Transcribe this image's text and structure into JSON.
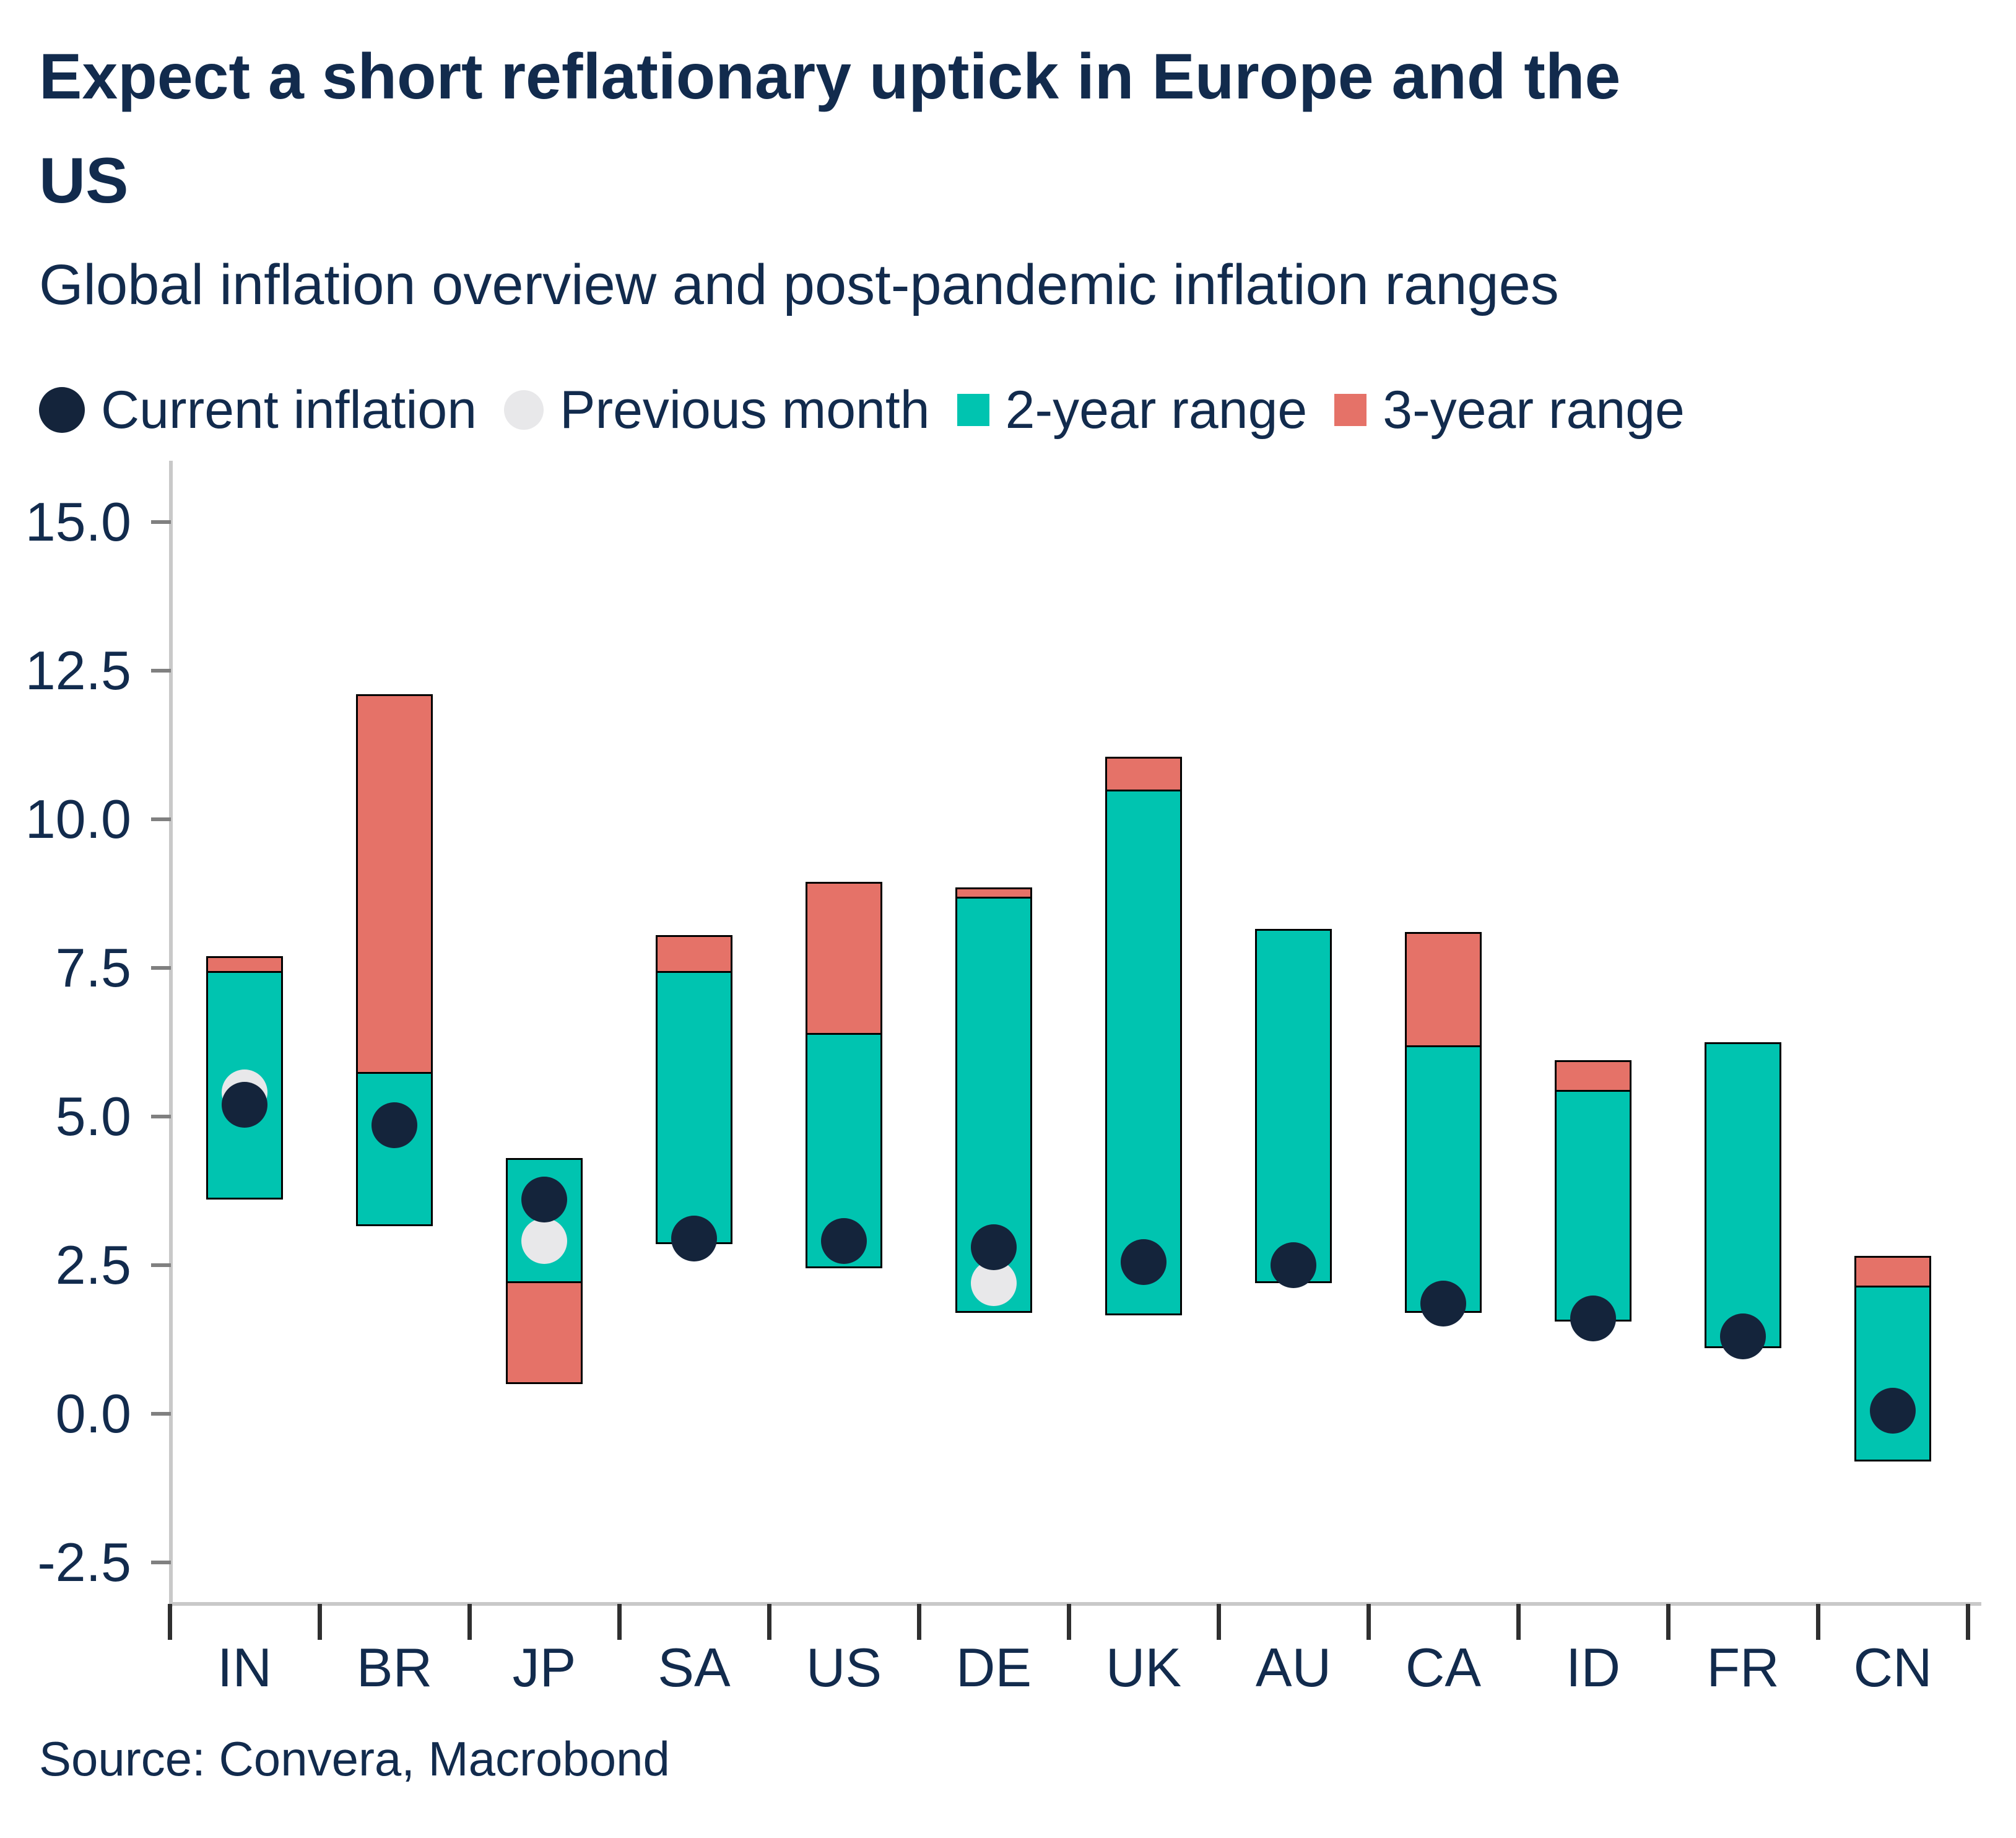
{
  "title": "Expect a short reflationary uptick in Europe and the\nUS",
  "subtitle": "Global inflation overview and post-pandemic inflation ranges",
  "source": "Source: Convera, Macrobond",
  "legend": [
    {
      "label": "Current inflation",
      "marker": "circle",
      "color": "#14243b"
    },
    {
      "label": "Previous month",
      "marker": "circle",
      "color": "#e8e8ea"
    },
    {
      "label": "2-year range",
      "marker": "square",
      "color": "#00c4b0"
    },
    {
      "label": "3-year range",
      "marker": "square",
      "color": "#e57268"
    }
  ],
  "colors": {
    "text_navy": "#122b4d",
    "current_dot": "#14243b",
    "previous_dot": "#e8e8ea",
    "two_year_range": "#00c4b0",
    "three_year_range": "#e57268",
    "bar_border": "#000000",
    "axis_line": "#c9c9c9",
    "y_tick": "#808080",
    "x_tick": "#2f2f2f"
  },
  "chart_data": {
    "type": "bar",
    "subtype": "floating-range-bars-with-points",
    "title": "Expect a short reflationary uptick in Europe and the US",
    "subtitle": "Global inflation overview and post-pandemic inflation ranges",
    "xlabel": "",
    "ylabel": "",
    "ylim": [
      -2.5,
      15.0
    ],
    "ytick_labels": [
      "15.0",
      "12.5",
      "10.0",
      "7.5",
      "5.0",
      "2.5",
      "0.0",
      "-2.5"
    ],
    "grid": false,
    "legend_position": "top",
    "categories": [
      "IN",
      "BR",
      "JP",
      "SA",
      "US",
      "DE",
      "UK",
      "AU",
      "CA",
      "ID",
      "FR",
      "CN"
    ],
    "series": [
      {
        "name": "3-year range",
        "type": "range",
        "color": "#e57268",
        "low": [
          3.6,
          3.15,
          0.5,
          2.85,
          2.45,
          1.7,
          1.65,
          2.2,
          1.7,
          1.55,
          1.1,
          -0.8
        ],
        "high": [
          7.7,
          12.1,
          4.3,
          8.05,
          8.95,
          8.85,
          11.05,
          8.15,
          8.1,
          5.95,
          6.25,
          2.65
        ]
      },
      {
        "name": "2-year range",
        "type": "range",
        "color": "#00c4b0",
        "low": [
          3.6,
          3.15,
          2.2,
          2.85,
          2.45,
          1.7,
          1.65,
          2.2,
          1.7,
          1.55,
          1.1,
          -0.8
        ],
        "high": [
          7.45,
          5.75,
          4.3,
          7.45,
          6.4,
          8.7,
          10.5,
          8.15,
          6.2,
          5.45,
          6.25,
          2.15
        ]
      },
      {
        "name": "Current inflation",
        "type": "point",
        "color": "#14243b",
        "values": [
          5.2,
          4.85,
          3.6,
          2.95,
          2.9,
          2.8,
          2.55,
          2.5,
          1.85,
          1.6,
          1.3,
          0.05
        ]
      },
      {
        "name": "Previous month",
        "type": "point",
        "color": "#e8e8ea",
        "values": [
          5.4,
          null,
          2.9,
          null,
          null,
          2.2,
          null,
          null,
          null,
          null,
          null,
          null
        ]
      }
    ]
  }
}
